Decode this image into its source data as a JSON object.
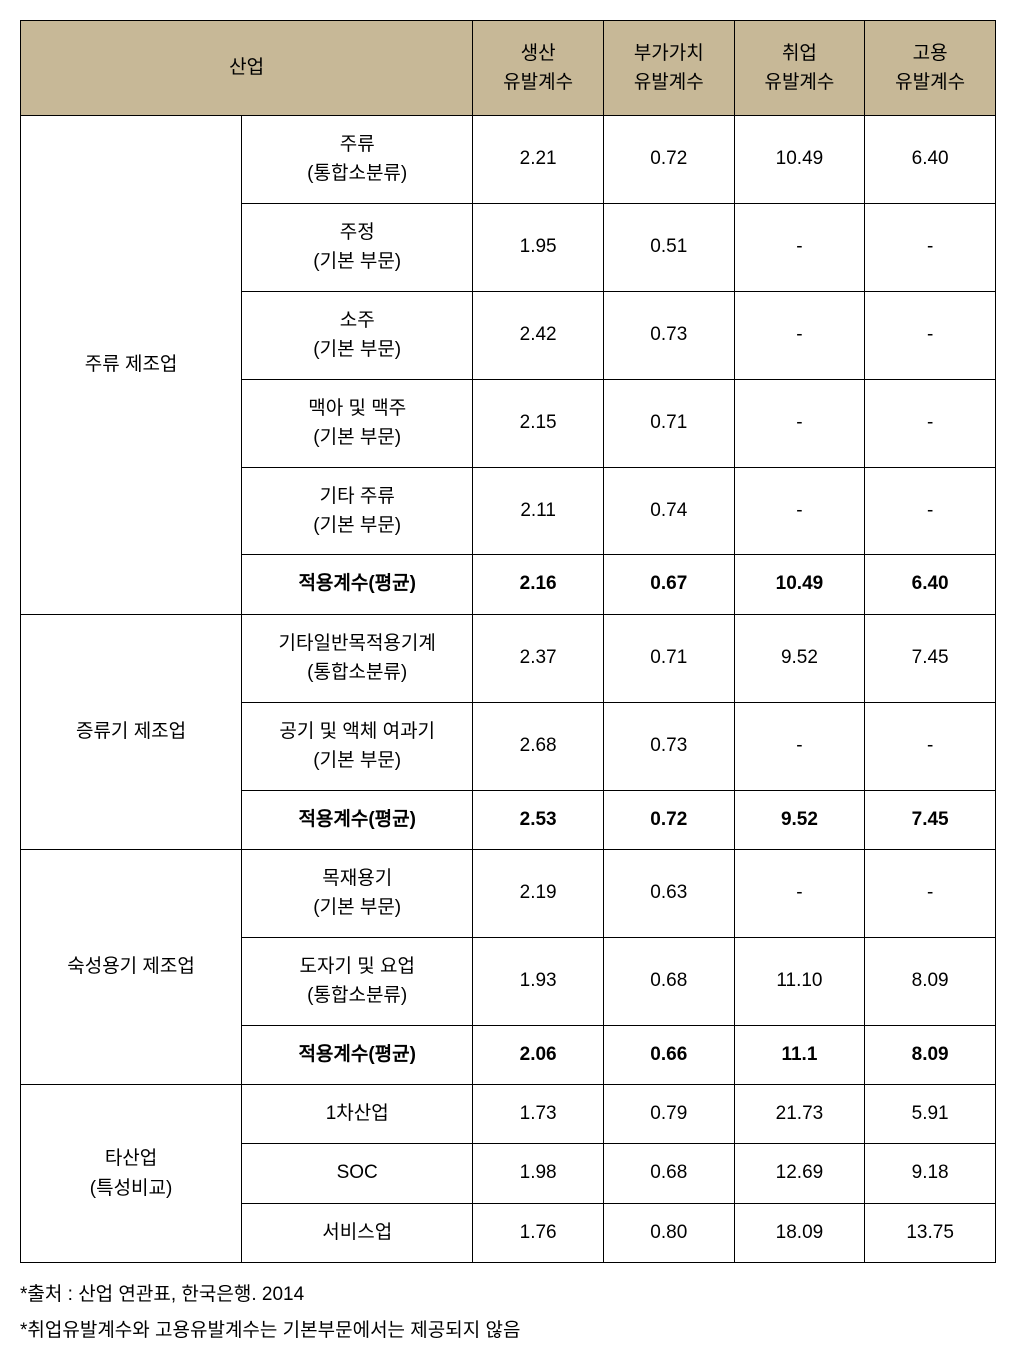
{
  "header": {
    "industry": "산업",
    "col1_line1": "생산",
    "col1_line2": "유발계수",
    "col2_line1": "부가가치",
    "col2_line2": "유발계수",
    "col3_line1": "취업",
    "col3_line2": "유발계수",
    "col4_line1": "고용",
    "col4_line2": "유발계수"
  },
  "groups": [
    {
      "name": "주류 제조업",
      "rows": [
        {
          "label_l1": "주류",
          "label_l2": "(통합소분류)",
          "v1": "2.21",
          "v2": "0.72",
          "v3": "10.49",
          "v4": "6.40",
          "bold": false
        },
        {
          "label_l1": "주정",
          "label_l2": "(기본 부문)",
          "v1": "1.95",
          "v2": "0.51",
          "v3": "-",
          "v4": "-",
          "bold": false
        },
        {
          "label_l1": "소주",
          "label_l2": "(기본 부문)",
          "v1": "2.42",
          "v2": "0.73",
          "v3": "-",
          "v4": "-",
          "bold": false
        },
        {
          "label_l1": "맥아 및 맥주",
          "label_l2": "(기본 부문)",
          "v1": "2.15",
          "v2": "0.71",
          "v3": "-",
          "v4": "-",
          "bold": false
        },
        {
          "label_l1": "기타 주류",
          "label_l2": "(기본 부문)",
          "v1": "2.11",
          "v2": "0.74",
          "v3": "-",
          "v4": "-",
          "bold": false
        },
        {
          "label_l1": "적용계수(평균)",
          "label_l2": "",
          "v1": "2.16",
          "v2": "0.67",
          "v3": "10.49",
          "v4": "6.40",
          "bold": true
        }
      ]
    },
    {
      "name": "증류기 제조업",
      "rows": [
        {
          "label_l1": "기타일반목적용기계",
          "label_l2": "(통합소분류)",
          "v1": "2.37",
          "v2": "0.71",
          "v3": "9.52",
          "v4": "7.45",
          "bold": false
        },
        {
          "label_l1": "공기 및 액체 여과기",
          "label_l2": "(기본 부문)",
          "v1": "2.68",
          "v2": "0.73",
          "v3": "-",
          "v4": "-",
          "bold": false
        },
        {
          "label_l1": "적용계수(평균)",
          "label_l2": "",
          "v1": "2.53",
          "v2": "0.72",
          "v3": "9.52",
          "v4": "7.45",
          "bold": true
        }
      ]
    },
    {
      "name": "숙성용기 제조업",
      "rows": [
        {
          "label_l1": "목재용기",
          "label_l2": "(기본 부문)",
          "v1": "2.19",
          "v2": "0.63",
          "v3": "-",
          "v4": "-",
          "bold": false
        },
        {
          "label_l1": "도자기 및 요업",
          "label_l2": "(통합소분류)",
          "v1": "1.93",
          "v2": "0.68",
          "v3": "11.10",
          "v4": "8.09",
          "bold": false
        },
        {
          "label_l1": "적용계수(평균)",
          "label_l2": "",
          "v1": "2.06",
          "v2": "0.66",
          "v3": "11.1",
          "v4": "8.09",
          "bold": true
        }
      ]
    }
  ],
  "other_group": {
    "name_l1": "타산업",
    "name_l2": "(특성비교)",
    "rows": [
      {
        "label": "1차산업",
        "v1": "1.73",
        "v2": "0.79",
        "v3": "21.73",
        "v4": "5.91"
      },
      {
        "label": "SOC",
        "v1": "1.98",
        "v2": "0.68",
        "v3": "12.69",
        "v4": "9.18"
      },
      {
        "label": "서비스업",
        "v1": "1.76",
        "v2": "0.80",
        "v3": "18.09",
        "v4": "13.75"
      }
    ]
  },
  "footnotes": {
    "note1": "*출처 : 산업 연관표, 한국은행. 2014",
    "note2": "*취업유발계수와 고용유발계수는 기본부문에서는 제공되지 않음"
  },
  "styling": {
    "header_bg": "#c7b897",
    "border_color": "#000000",
    "font_size_pt": 19,
    "cell_text_color": "#000000",
    "background_color": "#ffffff"
  }
}
